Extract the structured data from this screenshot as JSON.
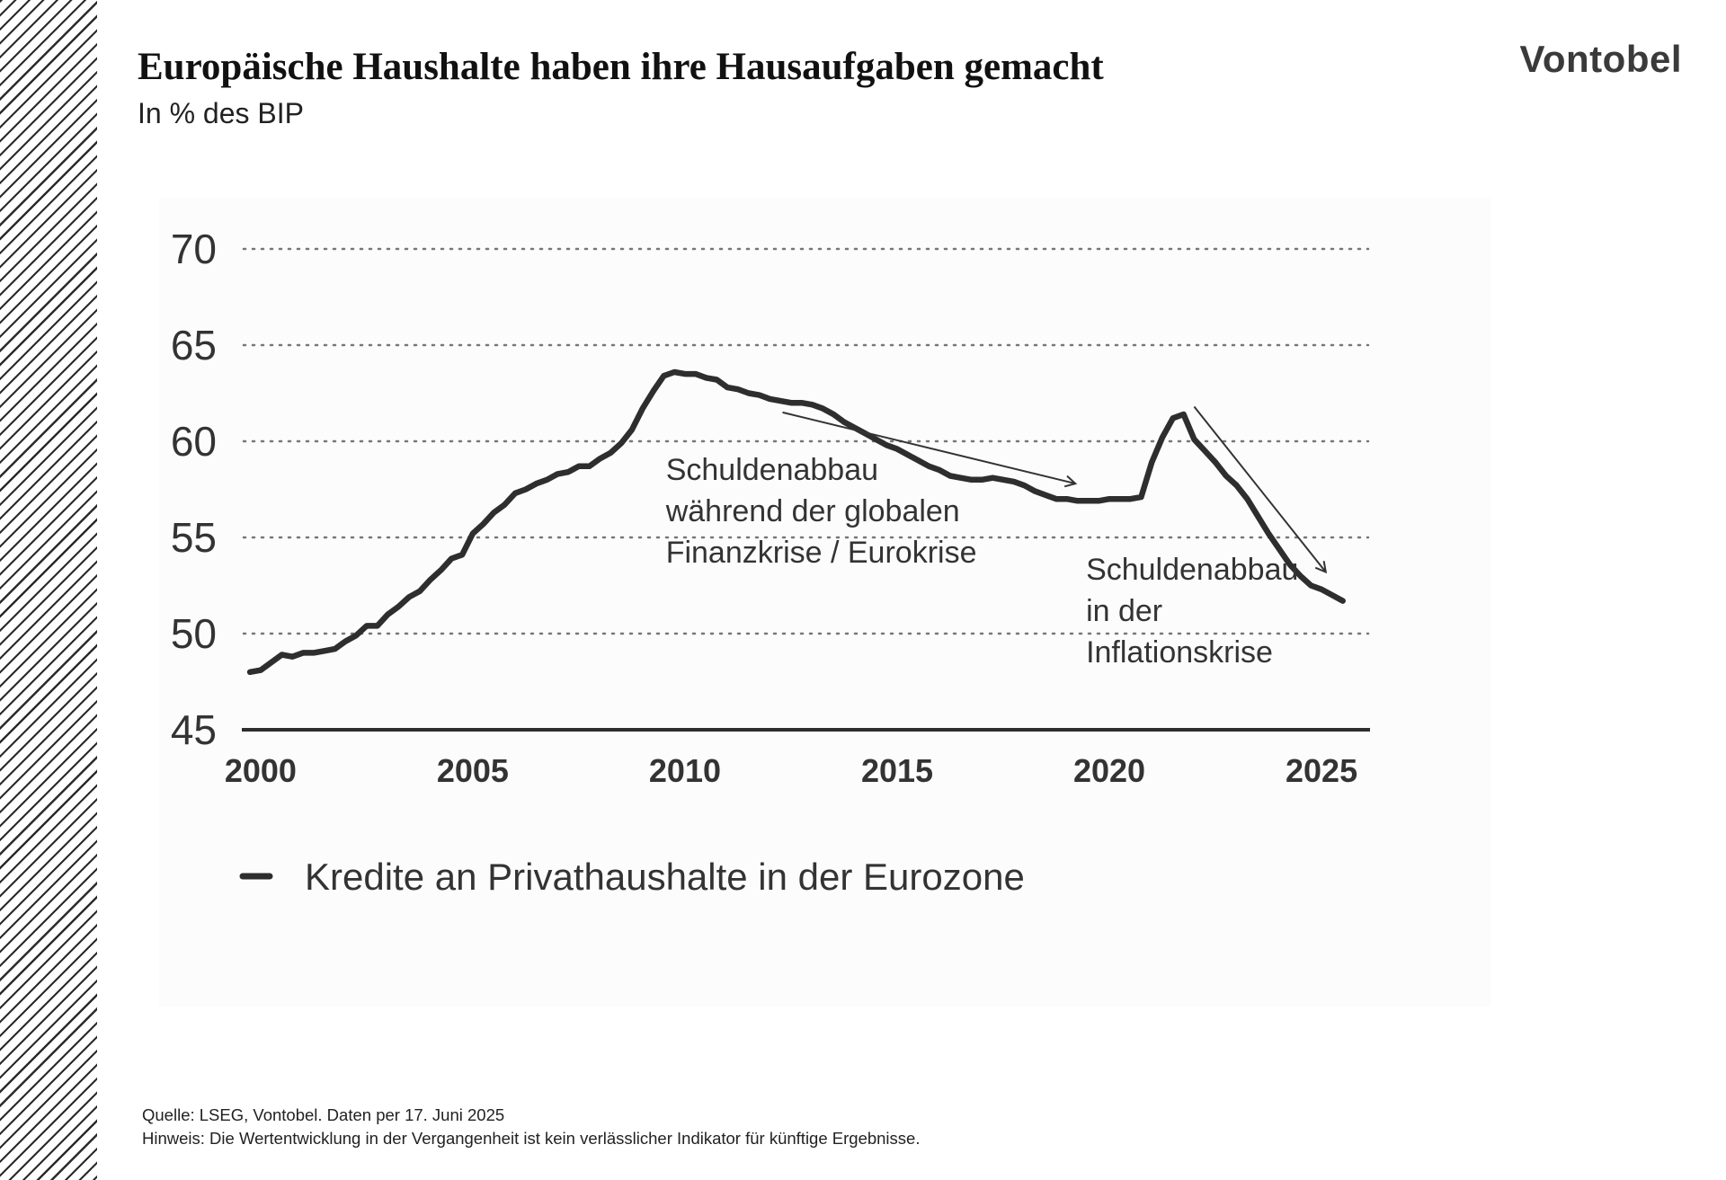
{
  "header": {
    "title": "Europäische Haushalte haben ihre Hausaufgaben gemacht",
    "subtitle": "In % des BIP",
    "logo_text": "Vontobel"
  },
  "chart_data": {
    "type": "line",
    "title": "",
    "xlabel": "",
    "ylabel": "",
    "xlim": [
      1999.6,
      2026.1
    ],
    "ylim": [
      45,
      70
    ],
    "yticks": [
      45,
      50,
      55,
      60,
      65,
      70
    ],
    "xticks": [
      2000,
      2005,
      2010,
      2015,
      2020,
      2025
    ],
    "grid": "dotted horizontal",
    "legend_position": "bottom-left",
    "series": [
      {
        "name": "Kredite an Privathaushalte in der Eurozone",
        "color": "#2e2e2e",
        "points": [
          [
            1999.75,
            48.0
          ],
          [
            2000.0,
            48.1
          ],
          [
            2000.25,
            48.5
          ],
          [
            2000.5,
            48.9
          ],
          [
            2000.75,
            48.8
          ],
          [
            2001.0,
            49.0
          ],
          [
            2001.25,
            49.0
          ],
          [
            2001.5,
            49.1
          ],
          [
            2001.75,
            49.2
          ],
          [
            2002.0,
            49.6
          ],
          [
            2002.25,
            49.9
          ],
          [
            2002.5,
            50.4
          ],
          [
            2002.75,
            50.4
          ],
          [
            2003.0,
            51.0
          ],
          [
            2003.25,
            51.4
          ],
          [
            2003.5,
            51.9
          ],
          [
            2003.75,
            52.2
          ],
          [
            2004.0,
            52.8
          ],
          [
            2004.25,
            53.3
          ],
          [
            2004.5,
            53.9
          ],
          [
            2004.75,
            54.1
          ],
          [
            2005.0,
            55.2
          ],
          [
            2005.25,
            55.7
          ],
          [
            2005.5,
            56.3
          ],
          [
            2005.75,
            56.7
          ],
          [
            2006.0,
            57.3
          ],
          [
            2006.25,
            57.5
          ],
          [
            2006.5,
            57.8
          ],
          [
            2006.75,
            58.0
          ],
          [
            2007.0,
            58.3
          ],
          [
            2007.25,
            58.4
          ],
          [
            2007.5,
            58.7
          ],
          [
            2007.75,
            58.7
          ],
          [
            2008.0,
            59.1
          ],
          [
            2008.25,
            59.4
          ],
          [
            2008.5,
            59.9
          ],
          [
            2008.75,
            60.6
          ],
          [
            2009.0,
            61.7
          ],
          [
            2009.25,
            62.6
          ],
          [
            2009.5,
            63.4
          ],
          [
            2009.75,
            63.6
          ],
          [
            2010.0,
            63.5
          ],
          [
            2010.25,
            63.5
          ],
          [
            2010.5,
            63.3
          ],
          [
            2010.75,
            63.2
          ],
          [
            2011.0,
            62.8
          ],
          [
            2011.25,
            62.7
          ],
          [
            2011.5,
            62.5
          ],
          [
            2011.75,
            62.4
          ],
          [
            2012.0,
            62.2
          ],
          [
            2012.25,
            62.1
          ],
          [
            2012.5,
            62.0
          ],
          [
            2012.75,
            62.0
          ],
          [
            2013.0,
            61.9
          ],
          [
            2013.25,
            61.7
          ],
          [
            2013.5,
            61.4
          ],
          [
            2013.75,
            61.0
          ],
          [
            2014.0,
            60.7
          ],
          [
            2014.25,
            60.4
          ],
          [
            2014.5,
            60.1
          ],
          [
            2014.75,
            59.8
          ],
          [
            2015.0,
            59.6
          ],
          [
            2015.25,
            59.3
          ],
          [
            2015.5,
            59.0
          ],
          [
            2015.75,
            58.7
          ],
          [
            2016.0,
            58.5
          ],
          [
            2016.25,
            58.2
          ],
          [
            2016.5,
            58.1
          ],
          [
            2016.75,
            58.0
          ],
          [
            2017.0,
            58.0
          ],
          [
            2017.25,
            58.1
          ],
          [
            2017.5,
            58.0
          ],
          [
            2017.75,
            57.9
          ],
          [
            2018.0,
            57.7
          ],
          [
            2018.25,
            57.4
          ],
          [
            2018.5,
            57.2
          ],
          [
            2018.75,
            57.0
          ],
          [
            2019.0,
            57.0
          ],
          [
            2019.25,
            56.9
          ],
          [
            2019.5,
            56.9
          ],
          [
            2019.75,
            56.9
          ],
          [
            2020.0,
            57.0
          ],
          [
            2020.25,
            57.0
          ],
          [
            2020.5,
            57.0
          ],
          [
            2020.75,
            57.1
          ],
          [
            2021.0,
            58.9
          ],
          [
            2021.25,
            60.2
          ],
          [
            2021.5,
            61.2
          ],
          [
            2021.75,
            61.4
          ],
          [
            2022.0,
            60.1
          ],
          [
            2022.25,
            59.5
          ],
          [
            2022.5,
            58.9
          ],
          [
            2022.75,
            58.2
          ],
          [
            2023.0,
            57.7
          ],
          [
            2023.25,
            57.0
          ],
          [
            2023.5,
            56.1
          ],
          [
            2023.75,
            55.2
          ],
          [
            2024.0,
            54.4
          ],
          [
            2024.25,
            53.6
          ],
          [
            2024.5,
            53.0
          ],
          [
            2024.75,
            52.5
          ],
          [
            2025.0,
            52.3
          ],
          [
            2025.25,
            52.0
          ],
          [
            2025.5,
            51.7
          ]
        ]
      }
    ],
    "annotations": [
      {
        "lines": [
          "Schuldenabbau",
          "während der globalen",
          "Finanzkrise / Eurokrise"
        ],
        "text_at": [
          2009.55,
          58.0
        ],
        "arrow_from": [
          2012.3,
          61.5
        ],
        "arrow_to": [
          2019.2,
          57.8
        ]
      },
      {
        "lines": [
          "Schuldenabbau",
          "in der",
          "Inflationskrise"
        ],
        "text_at": [
          2019.45,
          52.8
        ],
        "arrow_from": [
          2022.0,
          61.8
        ],
        "arrow_to": [
          2025.1,
          53.2
        ]
      }
    ]
  },
  "footer": {
    "source": "Quelle: LSEG, Vontobel. Daten per 17. Juni 2025",
    "note": "Hinweis: Die Wertentwicklung in der Vergangenheit ist kein verlässlicher Indikator für künftige Ergebnisse."
  }
}
